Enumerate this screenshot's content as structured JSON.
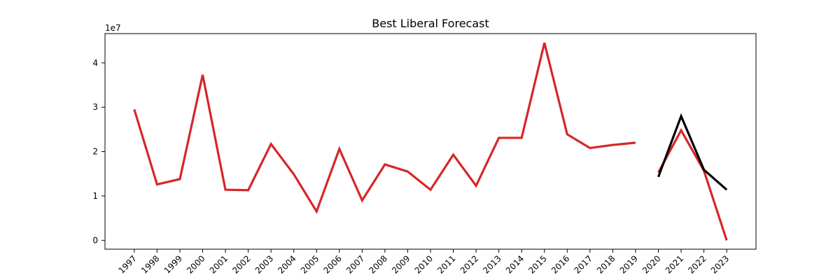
{
  "chart_data": {
    "type": "line",
    "title": "Best Liberal Forecast",
    "xlabel": "",
    "ylabel": "",
    "y_offset_label": "1e7",
    "categories": [
      "1997",
      "1998",
      "1999",
      "2000",
      "2001",
      "2002",
      "2003",
      "2004",
      "2005",
      "2006",
      "2007",
      "2008",
      "2009",
      "2010",
      "2011",
      "2012",
      "2013",
      "2014",
      "2015",
      "2016",
      "2017",
      "2018",
      "2019",
      "2020",
      "2021",
      "2022",
      "2023"
    ],
    "y_ticks": [
      0,
      1,
      2,
      3,
      4
    ],
    "y_tick_multiplier": 10000000,
    "ylim": [
      -2000000,
      46600000
    ],
    "x_label_rotation_deg": -45,
    "grid": false,
    "series": [
      {
        "color": "#d62728",
        "points": [
          {
            "x": "1997",
            "y": 29500000
          },
          {
            "x": "1998",
            "y": 12600000
          },
          {
            "x": "1999",
            "y": 13800000
          },
          {
            "x": "2000",
            "y": 37300000
          },
          {
            "x": "2001",
            "y": 11400000
          },
          {
            "x": "2002",
            "y": 11300000
          },
          {
            "x": "2003",
            "y": 21700000
          },
          {
            "x": "2004",
            "y": 14900000
          },
          {
            "x": "2005",
            "y": 6500000
          },
          {
            "x": "2006",
            "y": 20600000
          },
          {
            "x": "2007",
            "y": 9000000
          },
          {
            "x": "2008",
            "y": 17100000
          },
          {
            "x": "2009",
            "y": 15500000
          },
          {
            "x": "2010",
            "y": 11400000
          },
          {
            "x": "2011",
            "y": 19300000
          },
          {
            "x": "2012",
            "y": 12300000
          },
          {
            "x": "2013",
            "y": 23100000
          },
          {
            "x": "2014",
            "y": 23100000
          },
          {
            "x": "2015",
            "y": 44500000
          },
          {
            "x": "2016",
            "y": 23900000
          },
          {
            "x": "2017",
            "y": 20800000
          },
          {
            "x": "2018",
            "y": 21500000
          },
          {
            "x": "2019",
            "y": 22000000
          }
        ]
      },
      {
        "color": "#d62728",
        "points": [
          {
            "x": "2020",
            "y": 15300000
          },
          {
            "x": "2021",
            "y": 24800000
          },
          {
            "x": "2022",
            "y": 15700000
          },
          {
            "x": "2023",
            "y": 0
          }
        ]
      },
      {
        "color": "#000000",
        "points": [
          {
            "x": "2020",
            "y": 14300000
          },
          {
            "x": "2021",
            "y": 28000000
          },
          {
            "x": "2022",
            "y": 15900000
          },
          {
            "x": "2023",
            "y": 11400000
          }
        ]
      }
    ]
  }
}
